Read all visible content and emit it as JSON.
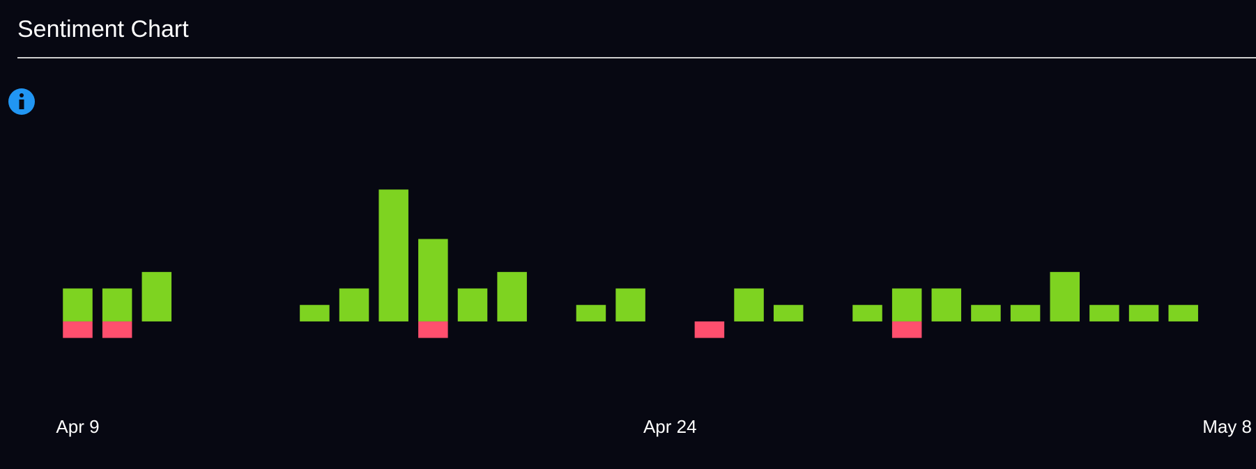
{
  "chart_data": {
    "type": "bar",
    "title": "Sentiment Chart",
    "categories": [
      "Apr 9",
      null,
      null,
      null,
      null,
      null,
      null,
      null,
      null,
      null,
      null,
      null,
      null,
      null,
      null,
      "Apr 24",
      null,
      null,
      null,
      null,
      null,
      null,
      null,
      null,
      null,
      null,
      null,
      null,
      null,
      "May 8"
    ],
    "series": [
      {
        "color": "#7ed321",
        "values": [
          2,
          2,
          3,
          0,
          0,
          0,
          1,
          2,
          8,
          5,
          2,
          3,
          0,
          1,
          2,
          0,
          0,
          2,
          1,
          0,
          1,
          2,
          2,
          1,
          1,
          3,
          1,
          1,
          1,
          0
        ]
      },
      {
        "color": "#ff4f6e",
        "values": [
          -1,
          -1,
          0,
          0,
          0,
          0,
          0,
          0,
          0,
          -1,
          0,
          0,
          0,
          0,
          0,
          0,
          -1,
          0,
          0,
          0,
          0,
          -1,
          0,
          0,
          0,
          0,
          0,
          0,
          0,
          0
        ]
      }
    ],
    "ylim": [
      -3,
      10
    ]
  }
}
